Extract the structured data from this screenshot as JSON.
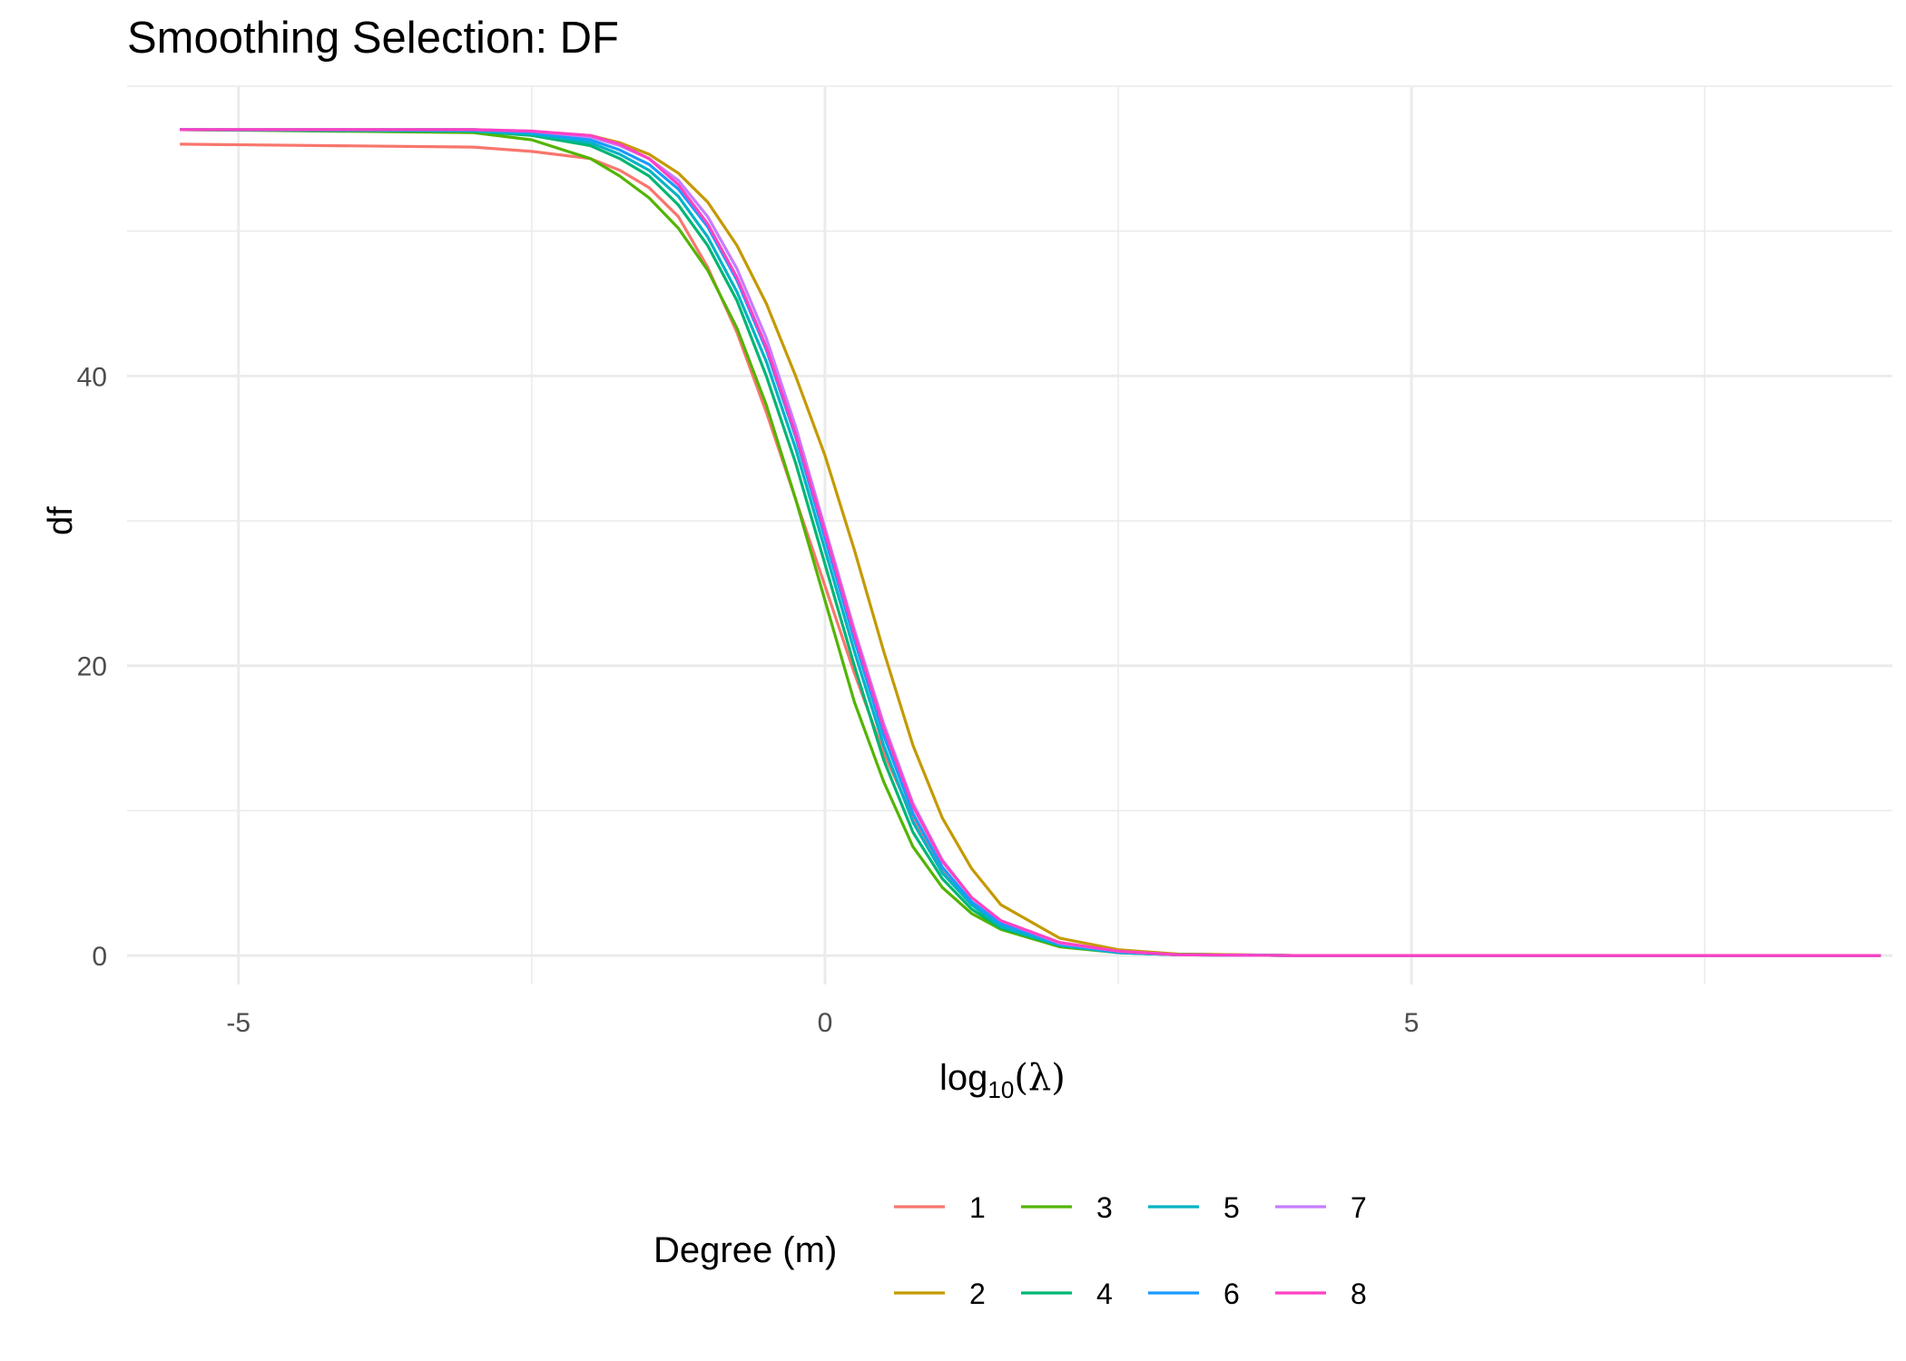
{
  "chart_data": {
    "type": "line",
    "title": "Smoothing Selection: DF",
    "xlabel": "log10(λ)",
    "xlabel_parts": {
      "base": "log",
      "sub": "10",
      "open": "(",
      "symbol": "λ",
      "close": ")"
    },
    "ylabel": "df",
    "xlim": [
      -5.95,
      9.1
    ],
    "ylim": [
      -2,
      60
    ],
    "x_ticks": [
      -5,
      0,
      5
    ],
    "y_ticks": [
      0,
      20,
      40
    ],
    "grid": true,
    "legend": {
      "title": "Degree (m)",
      "placement": "bottom"
    },
    "x": [
      -5.5,
      -3,
      -2.5,
      -2,
      -1.75,
      -1.5,
      -1.25,
      -1,
      -0.75,
      -0.5,
      -0.25,
      0,
      0.25,
      0.5,
      0.75,
      1,
      1.25,
      1.5,
      2,
      2.5,
      3,
      4,
      5,
      9
    ],
    "series": [
      {
        "name": "1",
        "color": "#F8766D",
        "values": [
          56.0,
          55.8,
          55.5,
          55.0,
          54.2,
          53.0,
          51.0,
          47.5,
          43.0,
          37.5,
          31.5,
          25.5,
          19.5,
          14.0,
          9.5,
          6.0,
          3.7,
          2.2,
          0.8,
          0.3,
          0.1,
          0.0,
          0.0,
          0.0
        ]
      },
      {
        "name": "2",
        "color": "#C49A00",
        "values": [
          57.0,
          57.0,
          56.8,
          56.6,
          56.1,
          55.3,
          54.0,
          52.0,
          49.0,
          45.0,
          40.0,
          34.5,
          28.0,
          21.0,
          14.5,
          9.5,
          6.0,
          3.5,
          1.2,
          0.4,
          0.1,
          0.0,
          0.0,
          0.0
        ]
      },
      {
        "name": "3",
        "color": "#53B400",
        "values": [
          57.0,
          56.8,
          56.3,
          55.0,
          53.8,
          52.3,
          50.2,
          47.3,
          43.3,
          38.0,
          31.5,
          24.5,
          17.5,
          12.0,
          7.5,
          4.7,
          2.9,
          1.8,
          0.6,
          0.2,
          0.05,
          0.0,
          0.0,
          0.0
        ]
      },
      {
        "name": "4",
        "color": "#00B673",
        "values": [
          57.0,
          56.9,
          56.6,
          55.9,
          55.0,
          53.8,
          51.8,
          49.0,
          45.2,
          40.0,
          34.0,
          27.0,
          20.0,
          13.5,
          8.5,
          5.3,
          3.2,
          1.9,
          0.7,
          0.2,
          0.05,
          0.0,
          0.0,
          0.0
        ]
      },
      {
        "name": "5",
        "color": "#00B3C4",
        "values": [
          57.0,
          56.9,
          56.7,
          56.1,
          55.3,
          54.2,
          52.4,
          49.6,
          45.8,
          41.0,
          35.0,
          28.0,
          21.0,
          14.5,
          9.2,
          5.7,
          3.5,
          2.0,
          0.7,
          0.2,
          0.05,
          0.0,
          0.0,
          0.0
        ]
      },
      {
        "name": "6",
        "color": "#1A9BFF",
        "values": [
          57.0,
          57.0,
          56.8,
          56.3,
          55.6,
          54.6,
          52.9,
          50.3,
          46.6,
          41.8,
          35.8,
          28.8,
          21.8,
          15.2,
          9.8,
          6.1,
          3.7,
          2.2,
          0.8,
          0.25,
          0.05,
          0.0,
          0.0,
          0.0
        ]
      },
      {
        "name": "7",
        "color": "#C77CFF",
        "values": [
          57.0,
          57.0,
          56.9,
          56.5,
          55.9,
          55.0,
          53.5,
          51.0,
          47.4,
          42.6,
          36.5,
          29.5,
          22.5,
          16.0,
          10.5,
          6.6,
          4.0,
          2.4,
          0.85,
          0.3,
          0.05,
          0.0,
          0.0,
          0.0
        ]
      },
      {
        "name": "8",
        "color": "#FF42C4",
        "values": [
          57.0,
          57.0,
          56.9,
          56.6,
          56.0,
          55.0,
          53.2,
          50.5,
          46.8,
          42.0,
          36.0,
          29.2,
          22.2,
          15.7,
          10.3,
          6.5,
          4.0,
          2.4,
          0.9,
          0.3,
          0.05,
          0.0,
          0.0,
          0.0
        ]
      }
    ]
  }
}
